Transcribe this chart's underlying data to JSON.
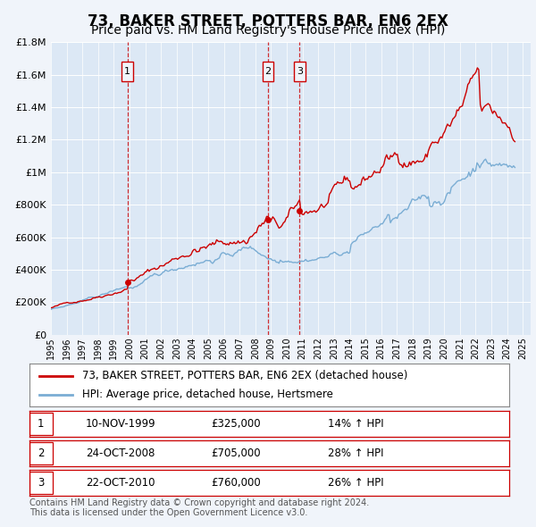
{
  "title": "73, BAKER STREET, POTTERS BAR, EN6 2EX",
  "subtitle": "Price paid vs. HM Land Registry's House Price Index (HPI)",
  "background_color": "#f0f4fa",
  "plot_bg_color": "#dce8f5",
  "grid_color": "#ffffff",
  "red_line_color": "#cc0000",
  "blue_line_color": "#7aadd4",
  "sale_marker_color": "#cc0000",
  "annotation_box_color": "#cc0000",
  "ylim": [
    0,
    1800000
  ],
  "yticks": [
    0,
    200000,
    400000,
    600000,
    800000,
    1000000,
    1200000,
    1400000,
    1600000,
    1800000
  ],
  "ytick_labels": [
    "£0",
    "£200K",
    "£400K",
    "£600K",
    "£800K",
    "£1M",
    "£1.2M",
    "£1.4M",
    "£1.6M",
    "£1.8M"
  ],
  "xmin": 1995.0,
  "xmax": 2025.5,
  "sale_dates": [
    1999.86,
    2008.81,
    2010.81
  ],
  "sale_prices": [
    325000,
    705000,
    760000
  ],
  "sale_labels": [
    "1",
    "2",
    "3"
  ],
  "vline_dates": [
    1999.86,
    2008.81,
    2010.81
  ],
  "legend_label_red": "73, BAKER STREET, POTTERS BAR, EN6 2EX (detached house)",
  "legend_label_blue": "HPI: Average price, detached house, Hertsmere",
  "table_rows": [
    [
      "1",
      "10-NOV-1999",
      "£325,000",
      "14% ↑ HPI"
    ],
    [
      "2",
      "24-OCT-2008",
      "£705,000",
      "28% ↑ HPI"
    ],
    [
      "3",
      "22-OCT-2010",
      "£760,000",
      "26% ↑ HPI"
    ]
  ],
  "footnote": "Contains HM Land Registry data © Crown copyright and database right 2024.\nThis data is licensed under the Open Government Licence v3.0.",
  "title_fontsize": 12,
  "subtitle_fontsize": 10,
  "tick_fontsize": 8,
  "legend_fontsize": 8.5,
  "table_fontsize": 8.5,
  "footnote_fontsize": 7
}
